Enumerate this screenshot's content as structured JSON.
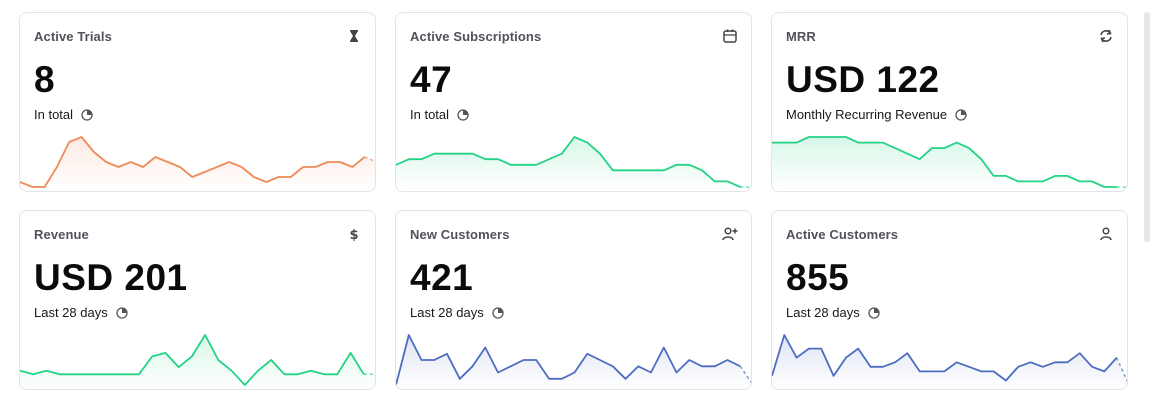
{
  "cards": [
    {
      "title": "Active Trials",
      "value": "8",
      "subtitle": "In total",
      "icon": "hourglass-icon",
      "color": "#ee8b5b",
      "chart_data": {
        "type": "line",
        "values": [
          2,
          1,
          1,
          5,
          10,
          11,
          8,
          6,
          5,
          6,
          5,
          7,
          6,
          5,
          3,
          4,
          5,
          6,
          5,
          3,
          2,
          3,
          3,
          5,
          5,
          6,
          6,
          5,
          7,
          6
        ],
        "dashed_last": true
      }
    },
    {
      "title": "Active Subscriptions",
      "value": "47",
      "subtitle": "In total",
      "icon": "calendar-icon",
      "color": "#22d384",
      "chart_data": {
        "type": "line",
        "values": [
          5,
          6,
          6,
          7,
          7,
          7,
          7,
          6,
          6,
          5,
          5,
          5,
          6,
          7,
          10,
          9,
          7,
          4,
          4,
          4,
          4,
          4,
          5,
          5,
          4,
          2,
          2,
          1,
          1
        ],
        "dashed_last": true
      }
    },
    {
      "title": "MRR",
      "value": "USD 122",
      "subtitle": "Monthly Recurring Revenue",
      "icon": "refresh-icon",
      "color": "#22d384",
      "chart_data": {
        "type": "line",
        "values": [
          9,
          9,
          9,
          10,
          10,
          10,
          10,
          9,
          9,
          9,
          8,
          7,
          6,
          8,
          8,
          9,
          8,
          6,
          3,
          3,
          2,
          2,
          2,
          3,
          3,
          2,
          2,
          1,
          1,
          1
        ],
        "dashed_last": true
      }
    },
    {
      "title": "Revenue",
      "value": "USD 201",
      "subtitle": "Last 28 days",
      "icon": "dollar-icon",
      "color": "#22d384",
      "chart_data": {
        "type": "line",
        "values": [
          2,
          1,
          2,
          1,
          1,
          1,
          1,
          1,
          1,
          1,
          6,
          7,
          3,
          6,
          12,
          5,
          2,
          -2,
          2,
          5,
          1,
          1,
          2,
          1,
          1,
          7,
          1,
          1
        ],
        "dashed_last": true
      }
    },
    {
      "title": "New Customers",
      "value": "421",
      "subtitle": "Last 28 days",
      "icon": "user-plus-icon",
      "color": "#4d6cc2",
      "chart_data": {
        "type": "line",
        "values": [
          1,
          9,
          5,
          5,
          6,
          2,
          4,
          7,
          3,
          4,
          5,
          5,
          2,
          2,
          3,
          6,
          5,
          4,
          2,
          4,
          3,
          7,
          3,
          5,
          4,
          4,
          5,
          4,
          1
        ],
        "dashed_last": true
      }
    },
    {
      "title": "Active Customers",
      "value": "855",
      "subtitle": "Last 28 days",
      "icon": "user-icon",
      "color": "#4d6cc2",
      "chart_data": {
        "type": "line",
        "values": [
          3,
          12,
          7,
          9,
          9,
          3,
          7,
          9,
          5,
          5,
          6,
          8,
          4,
          4,
          4,
          6,
          5,
          4,
          4,
          2,
          5,
          6,
          5,
          6,
          6,
          8,
          5,
          4,
          7,
          1
        ],
        "dashed_last": true
      }
    }
  ]
}
